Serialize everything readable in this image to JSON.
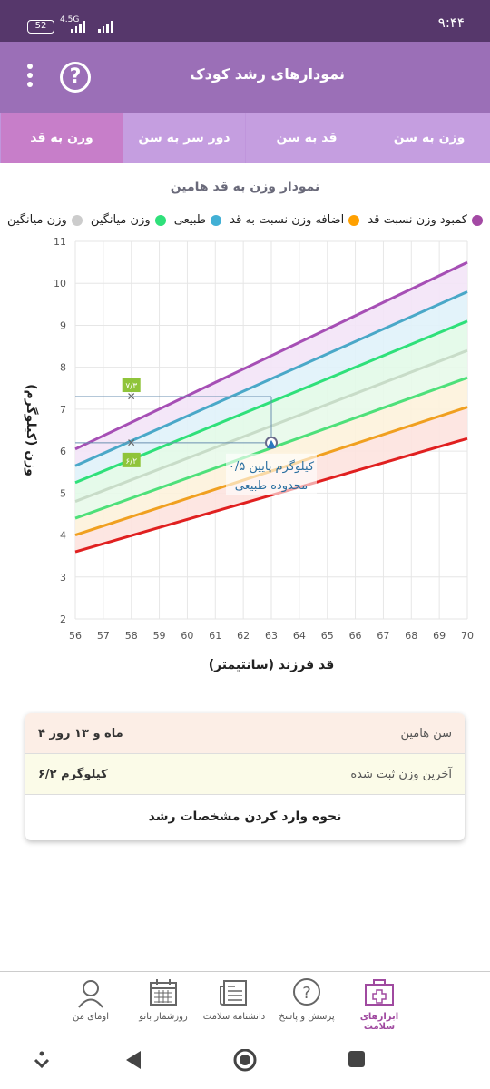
{
  "status": {
    "battery": "52",
    "network": "4.5G",
    "time": "۹:۴۴"
  },
  "appbar": {
    "title": "نمودارهای رشد کودک",
    "help_icon": "help-circle-icon",
    "menu_icon": "more-vert-icon"
  },
  "tabs": [
    {
      "label": "وزن به سن"
    },
    {
      "label": "قد به سن"
    },
    {
      "label": "دور سر به سن"
    },
    {
      "label": "وزن به قد",
      "active": true
    }
  ],
  "chart": {
    "title": "نمودار وزن به قد هامین"
  },
  "legend": [
    {
      "label": "کمبود وزن نسبت قد",
      "color": "#a349a4"
    },
    {
      "label": "اضافه وزن نسبت به قد",
      "color": "#4aa8c8"
    },
    {
      "label": "طبیعی",
      "color": "#2fe07a"
    },
    {
      "label": "وزن میانگین",
      "color": "#cccccc"
    }
  ],
  "chart_data": {
    "type": "line",
    "xlabel": "قد فرزند (سانتیمتر)",
    "ylabel": "وزن (کیلوگرم)",
    "xlim": [
      56,
      70
    ],
    "ylim": [
      2,
      11
    ],
    "xticks": [
      56,
      57,
      58,
      59,
      60,
      61,
      62,
      63,
      64,
      65,
      66,
      67,
      68,
      69,
      70
    ],
    "yticks": [
      2,
      3,
      4,
      5,
      6,
      7,
      8,
      9,
      10,
      11
    ],
    "grid": true,
    "series": [
      {
        "color": "#a64fb5",
        "x": [
          56,
          70
        ],
        "y": [
          6.05,
          10.5
        ]
      },
      {
        "color": "#4aa8c8",
        "x": [
          56,
          70
        ],
        "y": [
          5.65,
          9.8
        ]
      },
      {
        "color": "#2fe07a",
        "x": [
          56,
          70
        ],
        "y": [
          5.25,
          9.1
        ]
      },
      {
        "color": "#c8dcc8",
        "x": [
          56,
          70
        ],
        "y": [
          4.8,
          8.4
        ]
      },
      {
        "color": "#4ee07a",
        "x": [
          56,
          70
        ],
        "y": [
          4.4,
          7.75
        ]
      },
      {
        "color": "#f0a020",
        "x": [
          56,
          70
        ],
        "y": [
          4.0,
          7.05
        ]
      },
      {
        "color": "#e02020",
        "x": [
          56,
          70
        ],
        "y": [
          3.6,
          6.3
        ]
      }
    ],
    "markers": [
      {
        "x": 58,
        "y": 7.3,
        "label": "۷/۳"
      },
      {
        "x": 58,
        "y": 6.2,
        "label": "۶/۲"
      }
    ],
    "point": {
      "x": 63,
      "y": 6.2
    },
    "annotation": [
      "۰/۵ کیلوگرم پایین",
      "محدوده طبیعی"
    ]
  },
  "info": {
    "age_label": "سن هامین",
    "age_value": "۴ ماه و ۱۳ روز",
    "weight_label": "آخرین وزن ثبت شده",
    "weight_value": "۶/۲ کیلوگرم",
    "link": "نحوه وارد کردن مشخصات رشد"
  },
  "bottomnav": [
    {
      "label": "ابزارهای سلامت",
      "icon": "first-aid-kit-icon",
      "active": true
    },
    {
      "label": "پرسش و پاسخ",
      "icon": "question-bubble-icon"
    },
    {
      "label": "دانشنامه سلامت",
      "icon": "newspaper-icon"
    },
    {
      "label": "روزشمار بانو",
      "icon": "calendar-icon"
    },
    {
      "label": "اومای من",
      "icon": "user-icon"
    }
  ]
}
